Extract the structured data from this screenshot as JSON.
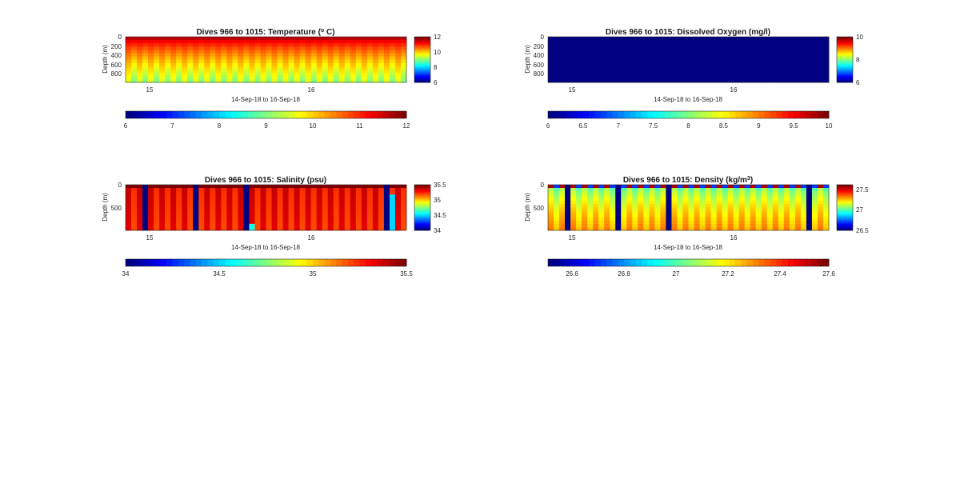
{
  "figure": {
    "background": "#ffffff",
    "colormap": "jet"
  },
  "chart_data": [
    {
      "type": "heatmap",
      "variable": "temperature",
      "title": "Dives 966 to 1015: Temperature (",
      "title_sup": "o",
      "title_tail": " C)",
      "xlabel": "14-Sep-18 to 16-Sep-18",
      "ylabel": "Depth (m)",
      "x_ticks": [
        "15",
        "16"
      ],
      "y_ticks": [
        "0",
        "200",
        "400",
        "600",
        "800"
      ],
      "ylim": [
        0,
        1000
      ],
      "clim": [
        6,
        12
      ],
      "side_colorbar_ticks": [
        "12",
        "10",
        "8",
        "6"
      ],
      "bottom_colorbar_ticks": [
        "6",
        "7",
        "8",
        "9",
        "10",
        "11",
        "12"
      ],
      "n_profiles": 50,
      "pattern": "alternating warm/cool columns, ~12 at surface cooling to ~9.5 at depth",
      "surface_value": 12,
      "deep_value": 9.3
    },
    {
      "type": "heatmap",
      "variable": "dissolved_oxygen",
      "title": "Dives 966 to 1015: Dissolved Oxygen (mg/l)",
      "title_sup": "",
      "title_tail": "",
      "xlabel": "14-Sep-18 to 16-Sep-18",
      "ylabel": "Depth (m)",
      "x_ticks": [
        "15",
        "16"
      ],
      "y_ticks": [
        "0",
        "200",
        "400",
        "600",
        "800"
      ],
      "ylim": [
        0,
        1000
      ],
      "clim": [
        6,
        10
      ],
      "side_colorbar_ticks": [
        "10",
        "8",
        "6"
      ],
      "bottom_colorbar_ticks": [
        "6",
        "6.5",
        "7",
        "7.5",
        "8",
        "8.5",
        "9",
        "9.5",
        "10"
      ],
      "n_profiles": 50,
      "pattern": "uniform, below color range",
      "surface_value": 6,
      "deep_value": 6
    },
    {
      "type": "heatmap",
      "variable": "salinity",
      "title": "Dives 966 to 1015: Salinity (psu)",
      "title_sup": "",
      "title_tail": "",
      "xlabel": "14-Sep-18 to 16-Sep-18",
      "ylabel": "Depth (m)",
      "x_ticks": [
        "15",
        "16"
      ],
      "y_ticks": [
        "0",
        "500"
      ],
      "ylim": [
        0,
        1000
      ],
      "clim": [
        34,
        35.5
      ],
      "side_colorbar_ticks": [
        "35.5",
        "35",
        "34.5",
        "34"
      ],
      "bottom_colorbar_ticks": [
        "34",
        "34.5",
        "35",
        "35.5"
      ],
      "n_profiles": 50,
      "pattern": "salty (~35.3) columns separated by data gaps; gaps at profiles 3, 12, 21, 46",
      "surface_value": 35.5,
      "deep_value": 35.3,
      "gap_profiles": [
        3,
        12,
        21,
        46
      ]
    },
    {
      "type": "heatmap",
      "variable": "density",
      "title": "Dives 966 to 1015: Density (kg/m",
      "title_sup": "3",
      "title_tail": ")",
      "xlabel": "14-Sep-18 to 16-Sep-18",
      "ylabel": "Depth (m)",
      "x_ticks": [
        "15",
        "16"
      ],
      "y_ticks": [
        "0",
        "500"
      ],
      "ylim": [
        0,
        1000
      ],
      "clim": [
        26.5,
        27.6
      ],
      "side_colorbar_ticks": [
        "27.5",
        "27",
        "26.5"
      ],
      "bottom_colorbar_ticks": [
        "26.6",
        "26.8",
        "27",
        "27.2",
        "27.4",
        "27.6"
      ],
      "n_profiles": 50,
      "pattern": "light (~26.9) near surface increasing to ~27.3 at depth; gaps at profiles 3, 12, 21, 46",
      "surface_value": 26.9,
      "deep_value": 27.3,
      "gap_profiles": [
        3,
        12,
        21,
        46
      ]
    }
  ]
}
